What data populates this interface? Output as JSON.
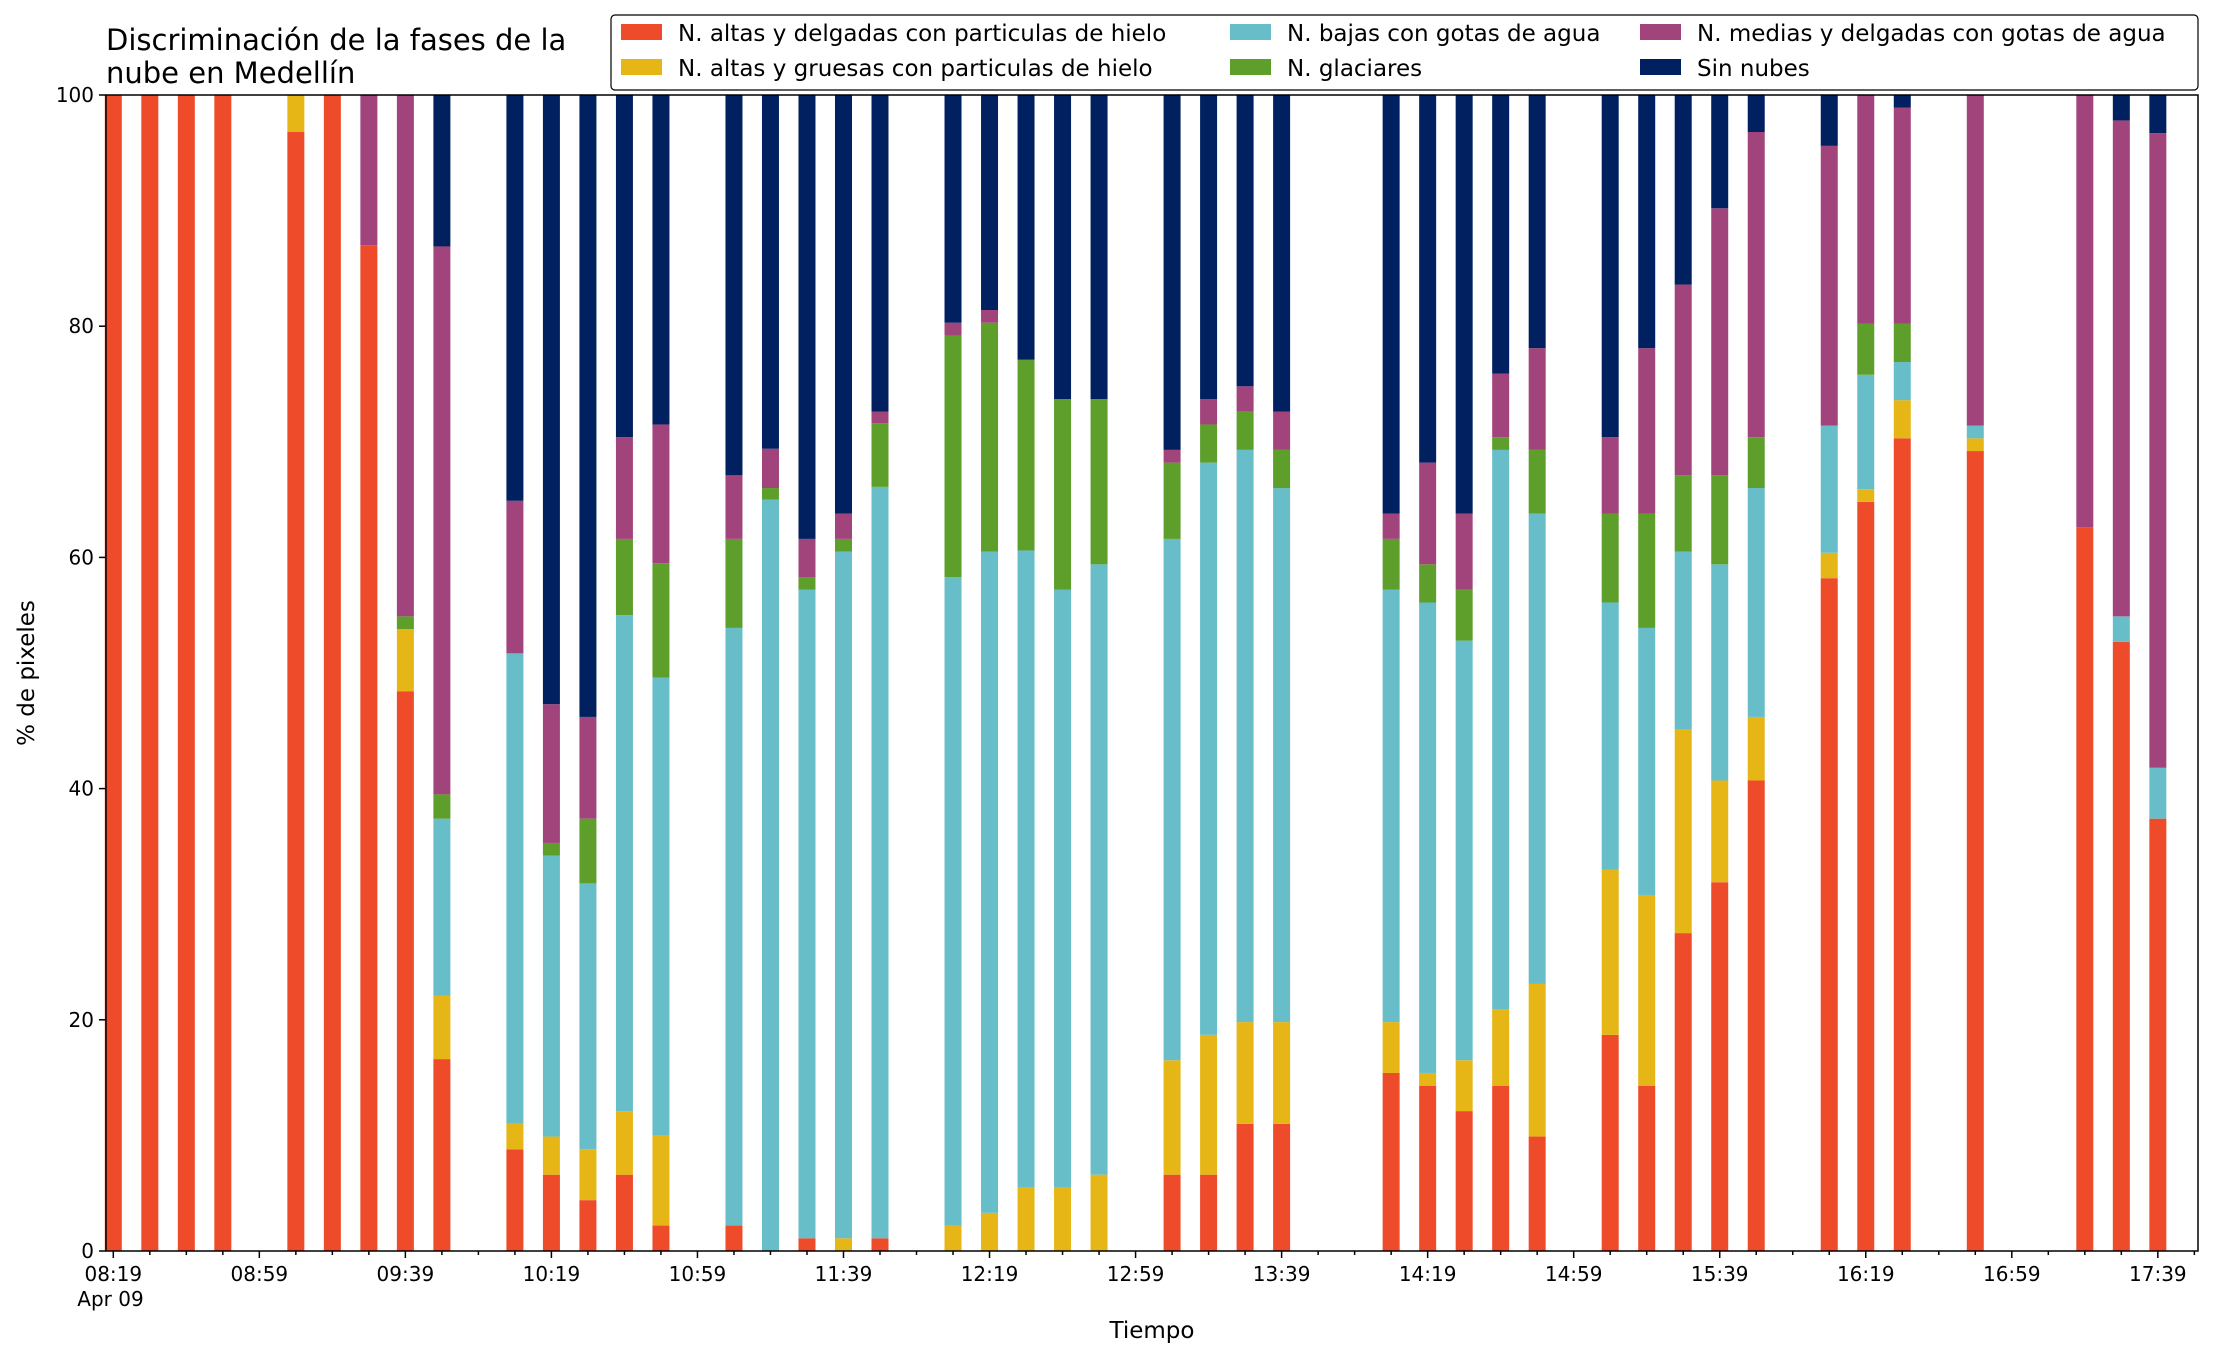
{
  "chart_data": {
    "type": "bar",
    "stacked": true,
    "title": "Discriminación de la fases de la\nnube en Medellín",
    "xlabel": "Tiempo",
    "ylabel": "% de pixeles",
    "ylim": [
      0,
      100
    ],
    "yticks": [
      0,
      20,
      40,
      60,
      80,
      100
    ],
    "xlim": [
      "08:17",
      "17:50"
    ],
    "xtick_labels": [
      {
        "time": "08:19",
        "label": "08:19",
        "sublabel": "Apr 09"
      },
      {
        "time": "08:59",
        "label": "08:59"
      },
      {
        "time": "09:39",
        "label": "09:39"
      },
      {
        "time": "10:19",
        "label": "10:19"
      },
      {
        "time": "10:59",
        "label": "10:59"
      },
      {
        "time": "11:39",
        "label": "11:39"
      },
      {
        "time": "12:19",
        "label": "12:19"
      },
      {
        "time": "12:59",
        "label": "12:59"
      },
      {
        "time": "13:39",
        "label": "13:39"
      },
      {
        "time": "14:19",
        "label": "14:19"
      },
      {
        "time": "14:59",
        "label": "14:59"
      },
      {
        "time": "15:39",
        "label": "15:39"
      },
      {
        "time": "16:19",
        "label": "16:19"
      },
      {
        "time": "16:59",
        "label": "16:59"
      },
      {
        "time": "17:39",
        "label": "17:39"
      }
    ],
    "minor_tick_step_minutes": 10,
    "grid": false,
    "legend_position": "top-right",
    "series": [
      {
        "name": "N. altas y delgadas con particulas de hielo",
        "color": "#ee4b2b"
      },
      {
        "name": "N. altas y gruesas con particulas de hielo",
        "color": "#e6b617"
      },
      {
        "name": "N. bajas con gotas de agua",
        "color": "#67bec9"
      },
      {
        "name": "N. glaciares",
        "color": "#5e9e2b"
      },
      {
        "name": "N. medias y delgadas con gotas de agua",
        "color": "#a2447c"
      },
      {
        "name": "Sin nubes",
        "color": "#002060"
      }
    ],
    "bars": [
      {
        "time": "08:19",
        "values": [
          100,
          0,
          0,
          0,
          0,
          0
        ]
      },
      {
        "time": "08:29",
        "values": [
          100,
          0,
          0,
          0,
          0,
          0
        ]
      },
      {
        "time": "08:39",
        "values": [
          100,
          0,
          0,
          0,
          0,
          0
        ]
      },
      {
        "time": "08:49",
        "values": [
          100,
          0,
          0,
          0,
          0,
          0
        ]
      },
      {
        "time": "09:09",
        "values": [
          96.8,
          3.2,
          0,
          0,
          0,
          0
        ]
      },
      {
        "time": "09:19",
        "values": [
          100,
          0,
          0,
          0,
          0,
          0
        ]
      },
      {
        "time": "09:29",
        "values": [
          87,
          0,
          0,
          0,
          13,
          0
        ]
      },
      {
        "time": "09:39",
        "values": [
          48.4,
          5.4,
          0,
          1.1,
          45.1,
          0
        ]
      },
      {
        "time": "09:49",
        "values": [
          16.6,
          5.5,
          15.3,
          2.1,
          47.4,
          13.1
        ]
      },
      {
        "time": "10:09",
        "values": [
          8.8,
          2.2,
          40.7,
          0,
          13.2,
          35.1
        ]
      },
      {
        "time": "10:19",
        "values": [
          6.6,
          3.3,
          24.3,
          1.1,
          12,
          52.7
        ]
      },
      {
        "time": "10:29",
        "values": [
          4.4,
          4.4,
          23,
          5.6,
          8.8,
          53.8
        ]
      },
      {
        "time": "10:39",
        "values": [
          6.6,
          5.5,
          42.9,
          6.6,
          8.8,
          29.6
        ]
      },
      {
        "time": "10:49",
        "values": [
          2.2,
          7.8,
          39.6,
          9.9,
          12,
          28.5
        ]
      },
      {
        "time": "11:09",
        "values": [
          2.2,
          0,
          51.7,
          7.7,
          5.5,
          32.9
        ]
      },
      {
        "time": "11:19",
        "values": [
          0,
          0,
          65,
          1,
          3.4,
          30.6
        ]
      },
      {
        "time": "11:29",
        "values": [
          1.1,
          0,
          56.1,
          1.1,
          3.3,
          38.4
        ]
      },
      {
        "time": "11:39",
        "values": [
          0,
          1.1,
          59.4,
          1.1,
          2.2,
          36.2
        ]
      },
      {
        "time": "11:49",
        "values": [
          1.1,
          0,
          65,
          5.5,
          1,
          27.4
        ]
      },
      {
        "time": "12:09",
        "values": [
          0,
          2.2,
          56.1,
          20.9,
          1.1,
          19.7
        ]
      },
      {
        "time": "12:19",
        "values": [
          0,
          3.3,
          57.2,
          19.8,
          1.1,
          18.6
        ]
      },
      {
        "time": "12:29",
        "values": [
          0,
          5.5,
          55.1,
          16.5,
          0,
          22.9
        ]
      },
      {
        "time": "12:39",
        "values": [
          0,
          5.5,
          51.7,
          16.5,
          0,
          26.3
        ]
      },
      {
        "time": "12:49",
        "values": [
          0,
          6.6,
          52.8,
          14.3,
          0,
          26.3
        ]
      },
      {
        "time": "13:09",
        "values": [
          6.6,
          9.9,
          45.1,
          6.6,
          1.1,
          30.7
        ]
      },
      {
        "time": "13:19",
        "values": [
          6.6,
          12.1,
          49.5,
          3.3,
          2.2,
          26.3
        ]
      },
      {
        "time": "13:29",
        "values": [
          11,
          8.8,
          49.5,
          3.3,
          2.2,
          25.2
        ]
      },
      {
        "time": "13:39",
        "values": [
          11,
          8.8,
          46.2,
          3.3,
          3.3,
          27.4
        ]
      },
      {
        "time": "14:09",
        "values": [
          15.4,
          4.4,
          37.4,
          4.4,
          2.2,
          36.2
        ]
      },
      {
        "time": "14:19",
        "values": [
          14.3,
          1.1,
          40.7,
          3.3,
          8.8,
          31.8
        ]
      },
      {
        "time": "14:29",
        "values": [
          12.1,
          4.4,
          36.3,
          4.4,
          6.6,
          36.2
        ]
      },
      {
        "time": "14:39",
        "values": [
          14.3,
          6.6,
          48.4,
          1.1,
          5.5,
          24.1
        ]
      },
      {
        "time": "14:49",
        "values": [
          9.9,
          13.2,
          40.7,
          5.5,
          8.8,
          21.9
        ]
      },
      {
        "time": "15:09",
        "values": [
          18.7,
          14.3,
          23.1,
          7.7,
          6.6,
          29.6
        ]
      },
      {
        "time": "15:19",
        "values": [
          14.3,
          16.5,
          23.1,
          9.9,
          14.3,
          21.9
        ]
      },
      {
        "time": "15:29",
        "values": [
          27.5,
          17.6,
          15.4,
          6.6,
          16.5,
          16.4
        ]
      },
      {
        "time": "15:39",
        "values": [
          31.9,
          8.8,
          18.7,
          7.7,
          23.1,
          9.8
        ]
      },
      {
        "time": "15:49",
        "values": [
          40.7,
          5.5,
          19.8,
          4.4,
          26.4,
          3.2
        ]
      },
      {
        "time": "16:09",
        "values": [
          58.2,
          2.2,
          11,
          0,
          24.2,
          4.4
        ]
      },
      {
        "time": "16:19",
        "values": [
          64.8,
          1.1,
          9.9,
          4.4,
          19.8,
          0
        ]
      },
      {
        "time": "16:29",
        "values": [
          70.3,
          3.3,
          3.3,
          3.3,
          18.7,
          1.1
        ]
      },
      {
        "time": "16:49",
        "values": [
          69.2,
          1.1,
          1.1,
          0,
          28.6,
          0
        ]
      },
      {
        "time": "17:19",
        "values": [
          62.6,
          0,
          0,
          0,
          37.4,
          0
        ]
      },
      {
        "time": "17:29",
        "values": [
          52.7,
          0,
          2.2,
          0,
          42.9,
          2.2
        ]
      },
      {
        "time": "17:39",
        "values": [
          37.4,
          0,
          4.4,
          0,
          54.9,
          3.3
        ]
      }
    ]
  }
}
